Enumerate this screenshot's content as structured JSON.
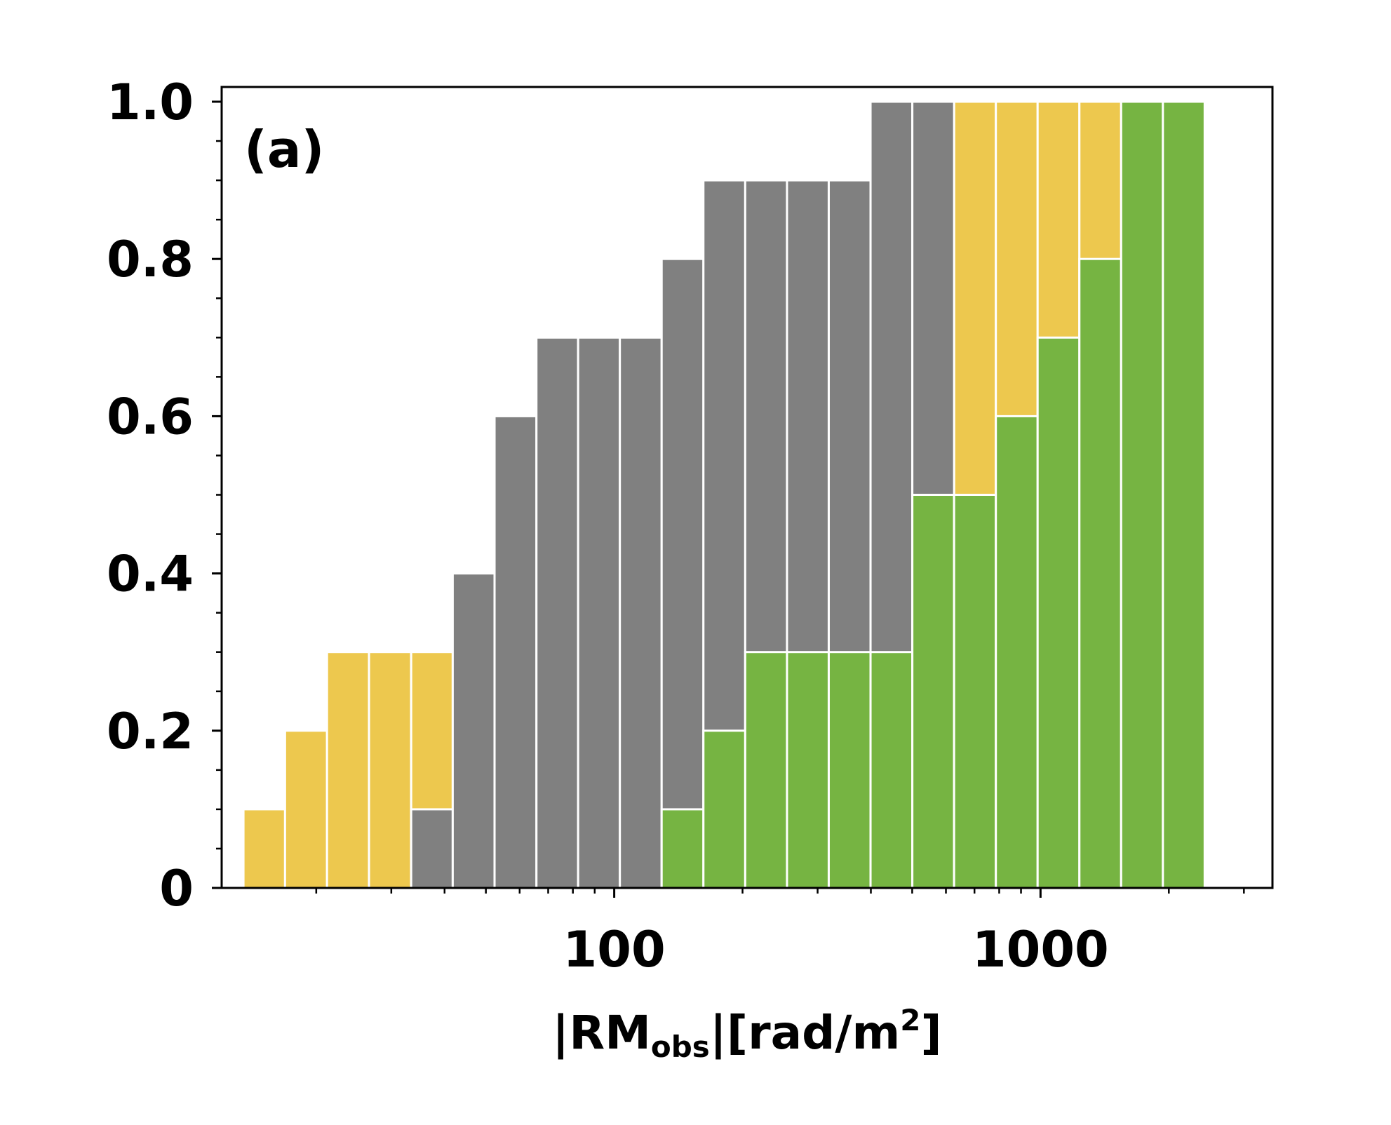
{
  "chart_data": {
    "type": "bar",
    "panel_label": "(a)",
    "x_scale": "log",
    "xlim": [
      12,
      3500
    ],
    "ylim": [
      0,
      1.0
    ],
    "xticks": [
      {
        "value": 100,
        "label": "100"
      },
      {
        "value": 1000,
        "label": "1000"
      }
    ],
    "yticks": [
      {
        "value": 0,
        "label": "0"
      },
      {
        "value": 0.2,
        "label": "0.2"
      },
      {
        "value": 0.4,
        "label": "0.4"
      },
      {
        "value": 0.6,
        "label": "0.6"
      },
      {
        "value": 0.8,
        "label": "0.8"
      },
      {
        "value": 1.0,
        "label": "1.0"
      }
    ],
    "y_minor_step": 0.05,
    "xlabel": {
      "prefix": "|RM",
      "subscript": "obs",
      "middle": "|[rad/m",
      "superscript": "2",
      "suffix": "]"
    },
    "bin_edges": [
      13.5,
      16.9,
      21.2,
      26.6,
      33.4,
      41.8,
      52.4,
      65.7,
      82.3,
      103.1,
      129.2,
      161.9,
      202.9,
      254.3,
      318.6,
      399.3,
      500.4,
      627.0,
      785.7,
      984.5,
      1233.6,
      1545.7,
      1936.8,
      2427.0
    ],
    "series": [
      {
        "color": "#edc84e",
        "values": [
          0.1,
          0.2,
          0.3,
          0.3,
          0.3,
          0,
          0,
          0,
          0,
          0,
          0,
          0,
          0,
          0,
          0,
          0,
          0,
          1.0,
          1.0,
          1.0,
          1.0,
          0,
          0
        ]
      },
      {
        "color": "#808080",
        "values": [
          0,
          0,
          0,
          0,
          0.1,
          0.4,
          0.6,
          0.7,
          0.7,
          0.7,
          0.8,
          0.9,
          0.9,
          0.9,
          0.9,
          1.0,
          1.0,
          0,
          0,
          0,
          0,
          0,
          0
        ]
      },
      {
        "color": "#76b442",
        "values": [
          0,
          0,
          0,
          0,
          0,
          0,
          0,
          0,
          0,
          0,
          0.1,
          0.2,
          0.3,
          0.3,
          0.3,
          0.3,
          0.5,
          0.5,
          0.6,
          0.7,
          0.8,
          1.0,
          1.0
        ]
      }
    ]
  }
}
